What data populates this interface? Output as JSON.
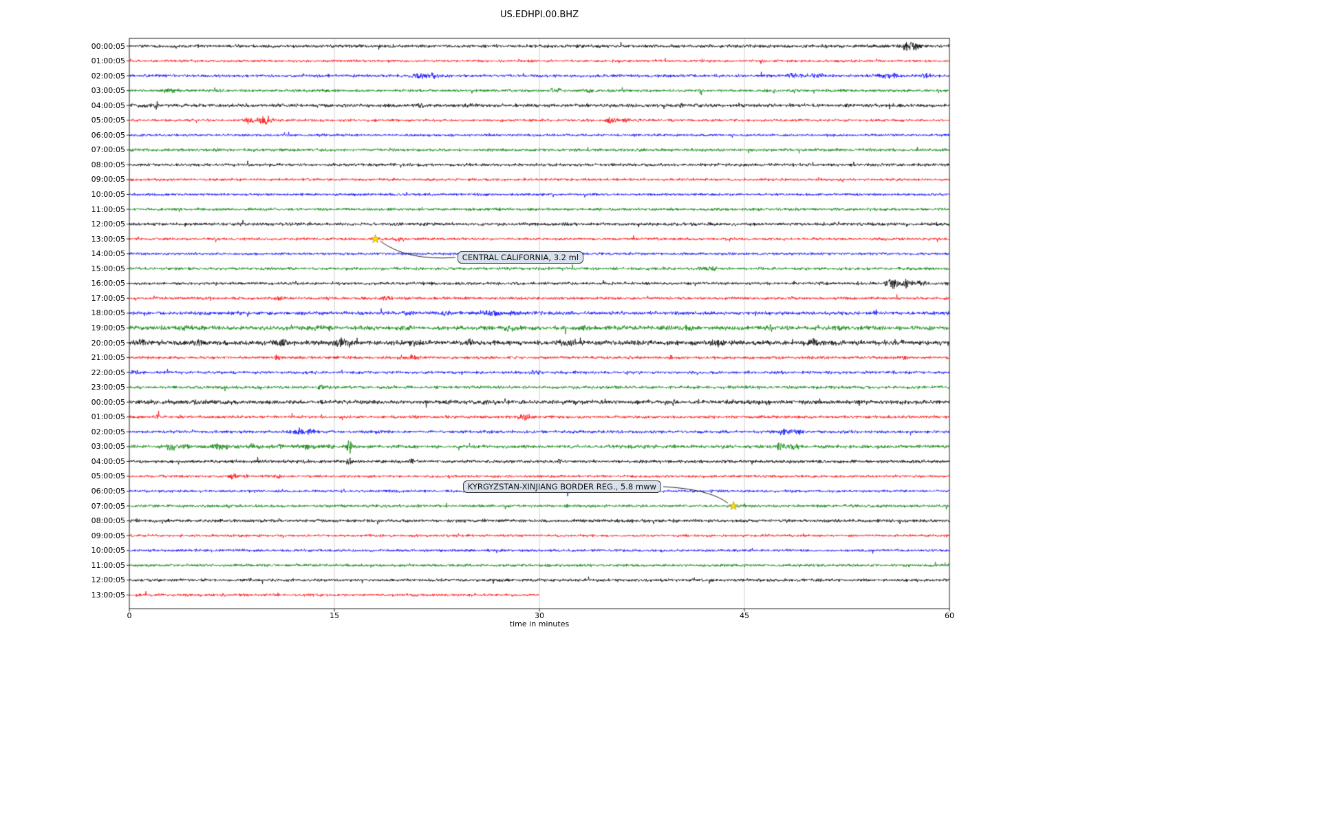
{
  "chart_data": {
    "type": "line",
    "subtype": "seismogram-dayplot",
    "title": "US.EDHPI.00.BHZ",
    "xlabel": "time in minutes",
    "x_range": [
      0,
      60
    ],
    "x_ticks": [
      0,
      15,
      30,
      45,
      60
    ],
    "x_tick_labels": [
      "0",
      "15",
      "30",
      "45",
      "60"
    ],
    "grid": "vertical",
    "color_cycle": [
      "#000000",
      "#ff0000",
      "#0000ff",
      "#008000"
    ],
    "rows": [
      {
        "label": "00:00:05",
        "color": "#000000",
        "noise": 1.1,
        "extent": 60,
        "events": [
          {
            "m": 57.0,
            "a": 6.5,
            "w": 0.8
          },
          {
            "m": 57.6,
            "a": 4.5,
            "w": 0.4
          }
        ]
      },
      {
        "label": "01:00:05",
        "color": "#ff0000",
        "noise": 0.85,
        "extent": 60,
        "events": []
      },
      {
        "label": "02:00:05",
        "color": "#0000ff",
        "noise": 1.0,
        "extent": 60,
        "events": [
          {
            "m": 21.3,
            "a": 4,
            "w": 1.1
          },
          {
            "m": 22.3,
            "a": 3.5,
            "w": 0.7
          },
          {
            "m": 48.6,
            "a": 4,
            "w": 1.0
          },
          {
            "m": 50.3,
            "a": 3.5,
            "w": 0.8
          },
          {
            "m": 55.5,
            "a": 3.5,
            "w": 1.4
          },
          {
            "m": 58.2,
            "a": 2.5,
            "w": 0.5
          }
        ]
      },
      {
        "label": "03:00:05",
        "color": "#008000",
        "noise": 1.0,
        "extent": 60,
        "events": [
          {
            "m": 2.9,
            "a": 3.5,
            "w": 0.9
          },
          {
            "m": 31.2,
            "a": 4.5,
            "w": 0.5
          },
          {
            "m": 33.6,
            "a": 2.5,
            "w": 0.6
          }
        ]
      },
      {
        "label": "04:00:05",
        "color": "#000000",
        "noise": 1.2,
        "extent": 60,
        "events": [
          {
            "m": 2.0,
            "a": 4,
            "w": 0.3
          },
          {
            "m": 21.3,
            "a": 2.8,
            "w": 0.5
          },
          {
            "m": 24.8,
            "a": 2.8,
            "w": 0.3
          },
          {
            "m": 52.5,
            "a": 2.2,
            "w": 0.4
          }
        ]
      },
      {
        "label": "05:00:05",
        "color": "#ff0000",
        "noise": 0.9,
        "extent": 60,
        "events": [
          {
            "m": 8.7,
            "a": 4.5,
            "w": 0.5
          },
          {
            "m": 9.9,
            "a": 6.5,
            "w": 0.9
          },
          {
            "m": 35.3,
            "a": 4,
            "w": 0.7
          },
          {
            "m": 36.3,
            "a": 2.8,
            "w": 0.4
          }
        ]
      },
      {
        "label": "06:00:05",
        "color": "#0000ff",
        "noise": 0.9,
        "extent": 60,
        "events": []
      },
      {
        "label": "07:00:05",
        "color": "#008000",
        "noise": 1.0,
        "extent": 60,
        "events": [
          {
            "m": 6.5,
            "a": 2.2,
            "w": 0.5
          }
        ]
      },
      {
        "label": "08:00:05",
        "color": "#000000",
        "noise": 1.0,
        "extent": 60,
        "events": []
      },
      {
        "label": "09:00:05",
        "color": "#ff0000",
        "noise": 0.9,
        "extent": 60,
        "events": []
      },
      {
        "label": "10:00:05",
        "color": "#0000ff",
        "noise": 0.9,
        "extent": 60,
        "events": []
      },
      {
        "label": "11:00:05",
        "color": "#008000",
        "noise": 1.0,
        "extent": 60,
        "events": []
      },
      {
        "label": "12:00:05",
        "color": "#000000",
        "noise": 1.1,
        "extent": 60,
        "events": [
          {
            "m": 4.0,
            "a": 2.4,
            "w": 0.4
          }
        ]
      },
      {
        "label": "13:00:05",
        "color": "#ff0000",
        "noise": 0.9,
        "extent": 60,
        "events": [
          {
            "m": 19.7,
            "a": 3.5,
            "w": 0.5
          }
        ]
      },
      {
        "label": "14:00:05",
        "color": "#0000ff",
        "noise": 0.9,
        "extent": 60,
        "events": []
      },
      {
        "label": "15:00:05",
        "color": "#008000",
        "noise": 1.0,
        "extent": 60,
        "events": [
          {
            "m": 42.5,
            "a": 2.4,
            "w": 0.8
          }
        ]
      },
      {
        "label": "16:00:05",
        "color": "#000000",
        "noise": 1.0,
        "extent": 60,
        "events": [
          {
            "m": 55.8,
            "a": 8,
            "w": 0.7
          },
          {
            "m": 56.9,
            "a": 6,
            "w": 0.7
          },
          {
            "m": 57.9,
            "a": 4,
            "w": 0.6
          }
        ]
      },
      {
        "label": "17:00:05",
        "color": "#ff0000",
        "noise": 0.95,
        "extent": 60,
        "events": [
          {
            "m": 11.0,
            "a": 3.5,
            "w": 0.4
          },
          {
            "m": 17.0,
            "a": 2.8,
            "w": 0.4
          },
          {
            "m": 18.8,
            "a": 3.2,
            "w": 0.5
          }
        ]
      },
      {
        "label": "18:00:05",
        "color": "#0000ff",
        "noise": 1.25,
        "extent": 60,
        "events": [
          {
            "m": 20.5,
            "a": 2.8,
            "w": 0.8
          },
          {
            "m": 23.3,
            "a": 3.6,
            "w": 1.0
          },
          {
            "m": 26.5,
            "a": 3.6,
            "w": 1.2
          },
          {
            "m": 28.2,
            "a": 2.8,
            "w": 0.8
          },
          {
            "m": 54.6,
            "a": 3.5,
            "w": 0.3
          }
        ]
      },
      {
        "label": "19:00:05",
        "color": "#008000",
        "noise": 1.45,
        "extent": 60,
        "events": [
          {
            "m": 4,
            "a": 2.6,
            "w": 1
          },
          {
            "m": 14,
            "a": 2.8,
            "w": 1.4
          },
          {
            "m": 20,
            "a": 2.8,
            "w": 1
          },
          {
            "m": 28,
            "a": 2.8,
            "w": 1.2
          },
          {
            "m": 33,
            "a": 2.8,
            "w": 0.8
          },
          {
            "m": 41,
            "a": 3.2,
            "w": 1.4
          },
          {
            "m": 47,
            "a": 2.8,
            "w": 1
          },
          {
            "m": 52,
            "a": 2.6,
            "w": 0.8
          }
        ]
      },
      {
        "label": "20:00:05",
        "color": "#000000",
        "noise": 1.65,
        "extent": 60,
        "events": [
          {
            "m": 1,
            "a": 3.5,
            "w": 0.8
          },
          {
            "m": 5,
            "a": 3.8,
            "w": 1
          },
          {
            "m": 11,
            "a": 4.5,
            "w": 1.2
          },
          {
            "m": 15.6,
            "a": 4.5,
            "w": 1.4
          },
          {
            "m": 21,
            "a": 4.2,
            "w": 1
          },
          {
            "m": 25,
            "a": 3,
            "w": 0.8
          },
          {
            "m": 32,
            "a": 3.8,
            "w": 1
          },
          {
            "m": 43,
            "a": 3.8,
            "w": 1.2
          },
          {
            "m": 50,
            "a": 3.4,
            "w": 1
          },
          {
            "m": 56,
            "a": 3,
            "w": 0.8
          }
        ]
      },
      {
        "label": "21:00:05",
        "color": "#ff0000",
        "noise": 1.0,
        "extent": 60,
        "events": [
          {
            "m": 10.8,
            "a": 5,
            "w": 0.3
          },
          {
            "m": 20.6,
            "a": 3.4,
            "w": 1.0
          },
          {
            "m": 36.6,
            "a": 2.8,
            "w": 0.4
          },
          {
            "m": 39.6,
            "a": 2.8,
            "w": 0.3
          },
          {
            "m": 47.6,
            "a": 2.8,
            "w": 0.4
          },
          {
            "m": 56.6,
            "a": 2.8,
            "w": 0.5
          }
        ]
      },
      {
        "label": "22:00:05",
        "color": "#0000ff",
        "noise": 1.0,
        "extent": 60,
        "events": [
          {
            "m": 0.4,
            "a": 4,
            "w": 0.4
          },
          {
            "m": 29.6,
            "a": 3.4,
            "w": 0.5
          }
        ]
      },
      {
        "label": "23:00:05",
        "color": "#008000",
        "noise": 1.05,
        "extent": 60,
        "events": [
          {
            "m": 14.0,
            "a": 4.2,
            "w": 0.4
          }
        ]
      },
      {
        "label": "00:00:05",
        "color": "#000000",
        "noise": 1.45,
        "extent": 60,
        "events": [
          {
            "m": 26.6,
            "a": 2.8,
            "w": 0.5
          },
          {
            "m": 39.8,
            "a": 5,
            "w": 0.3
          },
          {
            "m": 53.3,
            "a": 4,
            "w": 0.3
          }
        ]
      },
      {
        "label": "01:00:05",
        "color": "#ff0000",
        "noise": 1.0,
        "extent": 60,
        "events": [
          {
            "m": 2.0,
            "a": 2.8,
            "w": 0.5
          },
          {
            "m": 28.9,
            "a": 4.6,
            "w": 0.7
          }
        ]
      },
      {
        "label": "02:00:05",
        "color": "#0000ff",
        "noise": 1.0,
        "extent": 60,
        "events": [
          {
            "m": 12.3,
            "a": 4.4,
            "w": 0.8
          },
          {
            "m": 13.3,
            "a": 3.6,
            "w": 0.5
          },
          {
            "m": 47.9,
            "a": 4.4,
            "w": 0.9
          },
          {
            "m": 48.9,
            "a": 3.4,
            "w": 0.5
          }
        ]
      },
      {
        "label": "03:00:05",
        "color": "#008000",
        "noise": 1.2,
        "extent": 60,
        "events": [
          {
            "m": 3.0,
            "a": 3.8,
            "w": 0.8
          },
          {
            "m": 4.1,
            "a": 3.4,
            "w": 0.6
          },
          {
            "m": 6.6,
            "a": 4.2,
            "w": 1.0
          },
          {
            "m": 9.1,
            "a": 2.8,
            "w": 0.8
          },
          {
            "m": 11.1,
            "a": 2.8,
            "w": 0.6
          },
          {
            "m": 13.1,
            "a": 3.8,
            "w": 0.8
          },
          {
            "m": 14.6,
            "a": 3.4,
            "w": 0.5
          },
          {
            "m": 16.1,
            "a": 9.5,
            "w": 0.35
          },
          {
            "m": 47.6,
            "a": 4.8,
            "w": 0.8
          },
          {
            "m": 48.6,
            "a": 3.8,
            "w": 0.5
          }
        ]
      },
      {
        "label": "04:00:05",
        "color": "#000000",
        "noise": 1.1,
        "extent": 60,
        "events": [
          {
            "m": 16.1,
            "a": 6,
            "w": 0.3
          },
          {
            "m": 20.6,
            "a": 3.4,
            "w": 0.4
          },
          {
            "m": 31.5,
            "a": 2.6,
            "w": 0.3
          }
        ]
      },
      {
        "label": "05:00:05",
        "color": "#ff0000",
        "noise": 0.9,
        "extent": 60,
        "events": [
          {
            "m": 7.6,
            "a": 5,
            "w": 0.4
          },
          {
            "m": 8.5,
            "a": 3.8,
            "w": 0.3
          },
          {
            "m": 10.9,
            "a": 3.4,
            "w": 0.3
          }
        ]
      },
      {
        "label": "06:00:05",
        "color": "#0000ff",
        "noise": 0.9,
        "extent": 60,
        "events": [
          {
            "m": 32.1,
            "a": 9,
            "w": 0.25
          }
        ]
      },
      {
        "label": "07:00:05",
        "color": "#008000",
        "noise": 1.0,
        "extent": 60,
        "events": [
          {
            "m": 32.1,
            "a": 2.4,
            "w": 0.3
          }
        ]
      },
      {
        "label": "08:00:05",
        "color": "#000000",
        "noise": 1.1,
        "extent": 60,
        "events": []
      },
      {
        "label": "09:00:05",
        "color": "#ff0000",
        "noise": 0.9,
        "extent": 60,
        "events": []
      },
      {
        "label": "10:00:05",
        "color": "#0000ff",
        "noise": 0.9,
        "extent": 60,
        "events": []
      },
      {
        "label": "11:00:05",
        "color": "#008000",
        "noise": 1.0,
        "extent": 60,
        "events": []
      },
      {
        "label": "12:00:05",
        "color": "#000000",
        "noise": 1.0,
        "extent": 60,
        "events": []
      },
      {
        "label": "13:00:05",
        "color": "#ff0000",
        "noise": 0.9,
        "extent": 30,
        "events": []
      }
    ],
    "annotations": [
      {
        "text": "CENTRAL CALIFORNIA, 3.2 ml",
        "star_min": 18.0,
        "star_row": 13,
        "box_min": 24.0,
        "box_row": 14.25,
        "attach": "left"
      },
      {
        "text": "KYRGYZSTAN-XINJIANG BORDER REG., 5.8 mww",
        "star_min": 44.2,
        "star_row": 31,
        "box_min": 24.4,
        "box_row": 29.7,
        "attach": "right"
      }
    ],
    "marker_color": "#ffe000"
  }
}
